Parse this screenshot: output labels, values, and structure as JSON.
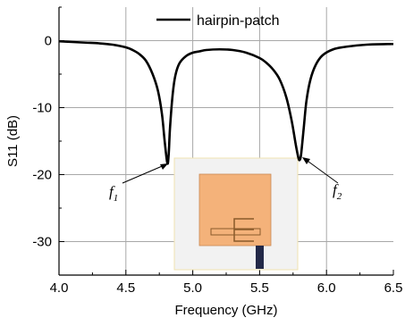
{
  "chart_data": {
    "type": "line",
    "xlabel": "Frequency (GHz)",
    "ylabel": "S11 (dB)",
    "xlim": [
      4.0,
      6.5
    ],
    "ylim": [
      -35,
      5
    ],
    "x_ticks": [
      "4.0",
      "4.5",
      "5.0",
      "5.5",
      "6.0",
      "6.5"
    ],
    "y_ticks": [
      "0",
      "-10",
      "-20",
      "-30"
    ],
    "grid": true,
    "legend": {
      "position": "top-center",
      "entries": [
        "hairpin-patch"
      ]
    },
    "series": [
      {
        "name": "hairpin-patch",
        "color": "#000000",
        "x": [
          4.0,
          4.1,
          4.2,
          4.3,
          4.4,
          4.5,
          4.55,
          4.6,
          4.65,
          4.7,
          4.74,
          4.77,
          4.79,
          4.81,
          4.82,
          4.83,
          4.85,
          4.87,
          4.9,
          4.95,
          5.0,
          5.05,
          5.1,
          5.2,
          5.3,
          5.4,
          5.5,
          5.55,
          5.6,
          5.65,
          5.7,
          5.74,
          5.77,
          5.79,
          5.8,
          5.81,
          5.83,
          5.85,
          5.88,
          5.92,
          5.97,
          6.05,
          6.15,
          6.3,
          6.5
        ],
        "y": [
          -0.1,
          -0.2,
          -0.3,
          -0.4,
          -0.6,
          -1.0,
          -1.4,
          -2.0,
          -3.0,
          -5.0,
          -7.5,
          -11.0,
          -15.0,
          -18.3,
          -17.0,
          -13.0,
          -8.0,
          -5.2,
          -3.4,
          -2.3,
          -1.8,
          -1.6,
          -1.4,
          -1.3,
          -1.4,
          -1.8,
          -2.6,
          -3.3,
          -4.3,
          -5.8,
          -8.5,
          -12.0,
          -15.5,
          -17.5,
          -17.8,
          -17.0,
          -13.0,
          -9.0,
          -5.8,
          -3.6,
          -2.2,
          -1.3,
          -0.9,
          -0.6,
          -0.5
        ]
      }
    ],
    "annotations": [
      {
        "label": "f",
        "subscript": "1",
        "points_to": [
          4.82,
          -18.3
        ]
      },
      {
        "label": "f",
        "subscript": "2",
        "points_to": [
          5.8,
          -17.8
        ]
      }
    ]
  },
  "inset": {
    "description_name": "hairpin-patch antenna layout",
    "colors": {
      "patch": "#f4b27a",
      "substrate": "#f2f2f2",
      "frame": "#f0e3b0",
      "feed": "#232948",
      "slot_stroke": "#8a5a2b"
    }
  }
}
